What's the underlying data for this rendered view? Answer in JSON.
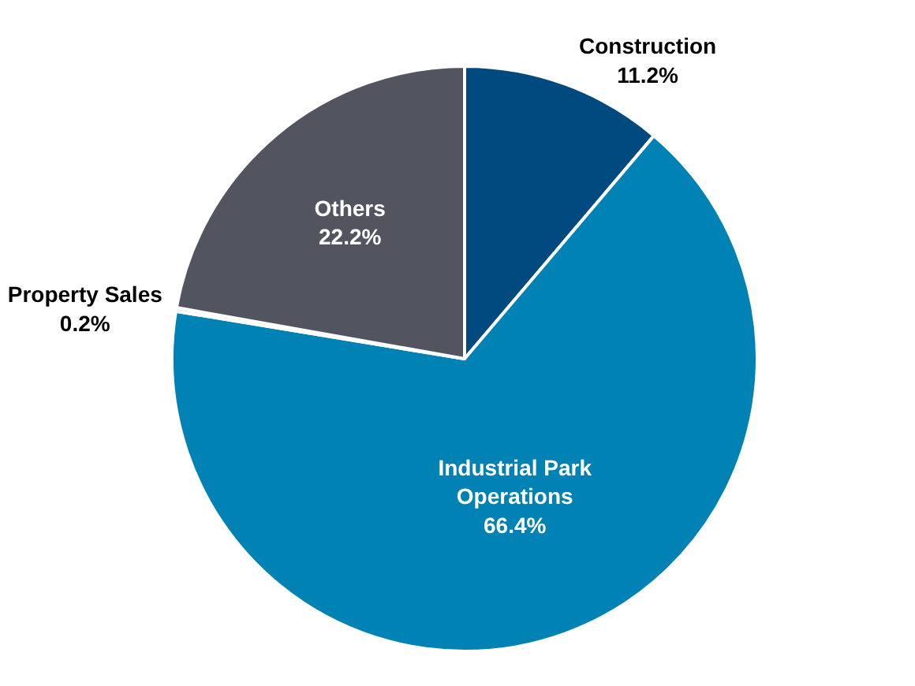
{
  "chart_data": {
    "type": "pie",
    "categories": [
      "Construction",
      "Industrial Park Operations",
      "Property Sales",
      "Others"
    ],
    "values": [
      11.2,
      66.4,
      0.2,
      22.2
    ],
    "value_labels": [
      "11.2%",
      "66.4%",
      "0.2%",
      "22.2%"
    ],
    "colors": [
      "#004a80",
      "#0082b4",
      "#d0d0d0",
      "#525560"
    ],
    "legend": false
  }
}
